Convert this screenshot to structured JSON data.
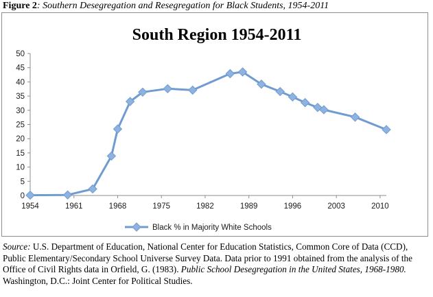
{
  "figure_caption": {
    "label": "Figure 2",
    "text": ": Southern Desegregation and Resegregation for Black Students, 1954-2011"
  },
  "source_note": {
    "label": "Source:",
    "text_1": " U.S. Department of Education, National Center for Education Statistics, Common Core of Data (CCD), Public Elementary/Secondary School Universe Survey Data. Data prior to 1991 obtained from the analysis of the Office of Civil Rights data in Orfield, G. (1983). ",
    "italic_title": "Public School Desegregation in the United States, 1968-1980.",
    "text_2": " Washington, D.C.: Joint Center for Political Studies."
  },
  "chart_data": {
    "type": "line",
    "title": "South Region 1954-2011",
    "xlabel": "",
    "ylabel": "",
    "xlim": [
      1954,
      2011
    ],
    "ylim": [
      0,
      50
    ],
    "y_ticks": [
      0,
      5,
      10,
      15,
      20,
      25,
      30,
      35,
      40,
      45,
      50
    ],
    "x_ticks": [
      1954,
      1961,
      1968,
      1975,
      1982,
      1989,
      1996,
      2003,
      2010
    ],
    "grid": false,
    "legend_position": "bottom",
    "series_color": "#6f9bd0",
    "marker_color": "#8fb3e0",
    "series": [
      {
        "name": "Black % in Majority White Schools",
        "x": [
          1954,
          1960,
          1964,
          1967,
          1968,
          1970,
          1972,
          1976,
          1980,
          1986,
          1988,
          1991,
          1994,
          1996,
          1998,
          2000,
          2001,
          2006,
          2011
        ],
        "y": [
          0.1,
          0.2,
          2.3,
          13.9,
          23.4,
          33.1,
          36.4,
          37.6,
          37.1,
          42.9,
          43.5,
          39.2,
          36.6,
          34.7,
          32.7,
          31.0,
          30.2,
          27.6,
          23.2
        ]
      }
    ]
  }
}
